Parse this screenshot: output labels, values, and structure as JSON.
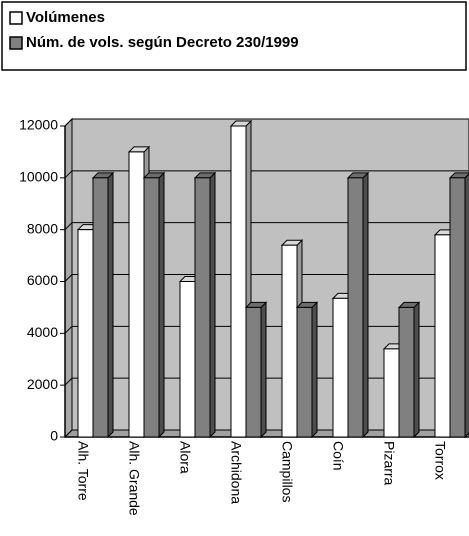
{
  "chart_data": {
    "type": "bar3d",
    "categories": [
      "Alh. Torre",
      "Alh. Grande",
      "Alora",
      "Archidona",
      "Campillos",
      "Coín",
      "Pizarra",
      "Torrox"
    ],
    "series": [
      {
        "name": "Volúmenes",
        "color": "#ffffff",
        "values": [
          8000,
          11000,
          6000,
          12000,
          7400,
          5350,
          3400,
          7800
        ]
      },
      {
        "name": "Núm. de vols. según Decreto 230/1999",
        "color": "#808080",
        "values": [
          10000,
          10000,
          10000,
          5000,
          5000,
          10000,
          5000,
          10000
        ]
      }
    ],
    "ylim": [
      0,
      12000
    ],
    "yticks": [
      0,
      2000,
      4000,
      6000,
      8000,
      10000,
      12000
    ],
    "grid": true,
    "legend": "top"
  }
}
